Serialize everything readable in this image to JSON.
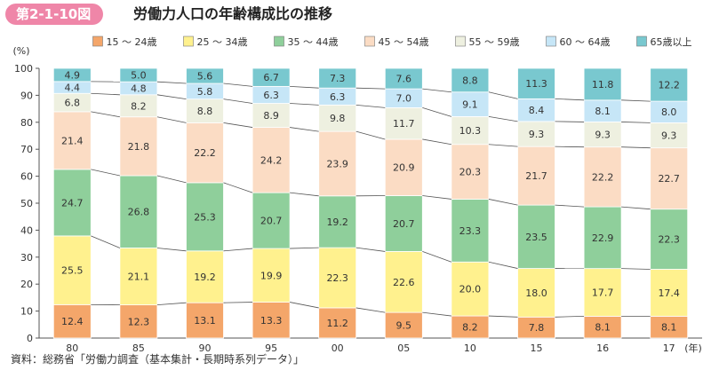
{
  "figure": {
    "number": "第2-1-10図",
    "title": "労働力人口の年齢構成比の推移"
  },
  "source": "資料：総務省「労働力調査（基本集計・長期時系列データ）」",
  "chart_data": {
    "type": "bar",
    "stacked": true,
    "normalized": true,
    "title": "労働力人口の年齢構成比の推移",
    "ylabel": "(%)",
    "xunit": "(年)",
    "ylim": [
      0,
      100
    ],
    "yticks": [
      0,
      10,
      20,
      30,
      40,
      50,
      60,
      70,
      80,
      90,
      100
    ],
    "grid": false,
    "legend_position": "top-right",
    "show_connector_lines": true,
    "categories": [
      "80",
      "85",
      "90",
      "95",
      "00",
      "05",
      "10",
      "15",
      "16",
      "17"
    ],
    "series": [
      {
        "name": "15 ～ 24歳",
        "color": "#f4a66a",
        "values": [
          12.4,
          12.3,
          13.1,
          13.3,
          11.2,
          9.5,
          8.2,
          7.8,
          8.1,
          8.1
        ]
      },
      {
        "name": "25 ～ 34歳",
        "color": "#fff18e",
        "values": [
          25.5,
          21.1,
          19.2,
          19.9,
          22.3,
          22.6,
          20.0,
          18.0,
          17.7,
          17.4
        ]
      },
      {
        "name": "35 ～ 44歳",
        "color": "#8fcf9b",
        "values": [
          24.7,
          26.8,
          25.3,
          20.7,
          19.2,
          20.7,
          23.3,
          23.5,
          22.9,
          22.3
        ]
      },
      {
        "name": "45 ～ 54歳",
        "color": "#fbdcc4",
        "values": [
          21.4,
          21.8,
          22.2,
          24.2,
          23.9,
          20.9,
          20.3,
          21.7,
          22.2,
          22.7
        ]
      },
      {
        "name": "55 ～ 59歳",
        "color": "#eef0e0",
        "values": [
          6.8,
          8.2,
          8.8,
          8.9,
          9.8,
          11.7,
          10.3,
          9.3,
          9.3,
          9.3
        ]
      },
      {
        "name": "60 ～ 64歳",
        "color": "#c6e6f7",
        "values": [
          4.4,
          4.8,
          5.8,
          6.3,
          6.3,
          7.0,
          9.1,
          8.4,
          8.1,
          8.0
        ]
      },
      {
        "name": "65歳以上",
        "color": "#79c8cf",
        "values": [
          4.9,
          5.0,
          5.6,
          6.7,
          7.3,
          7.6,
          8.8,
          11.3,
          11.8,
          12.2
        ]
      }
    ]
  }
}
